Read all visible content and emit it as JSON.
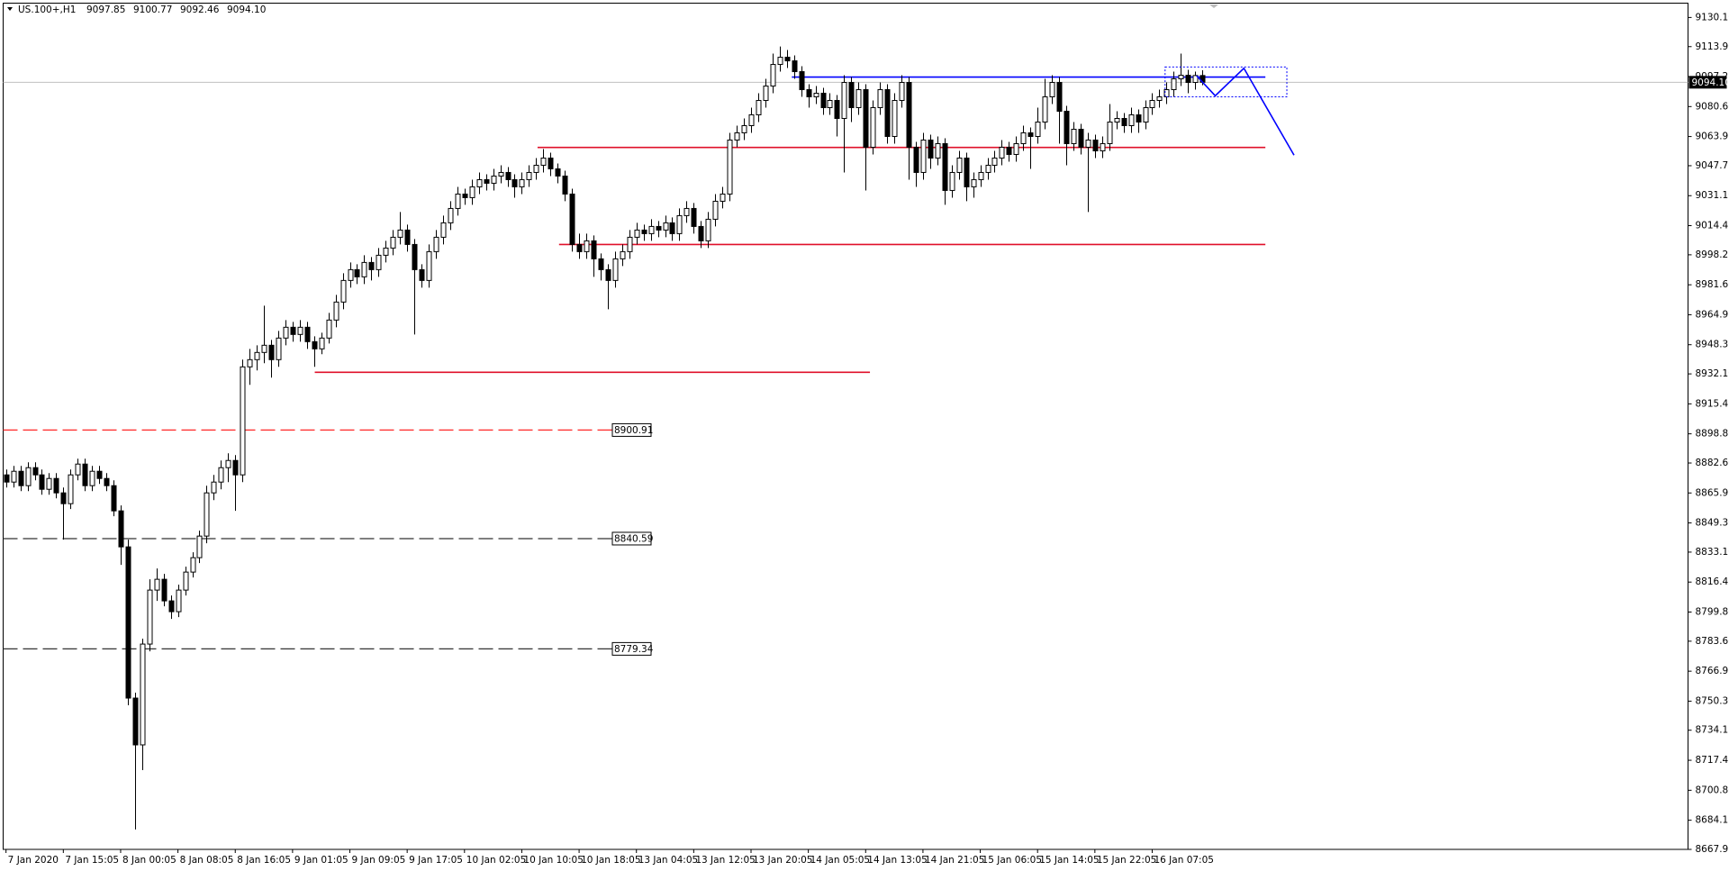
{
  "chart_data": {
    "type": "candlestick",
    "symbol": "US.100+,H1",
    "last_price_labels": [
      "9097.85",
      "9100.77",
      "9092.46",
      "9094.10"
    ],
    "up_color": "#ffffff",
    "down_color": "#000000",
    "edge_color": "#000000",
    "xlim": [
      -0.4,
      234.8
    ],
    "ylim": [
      8667.95,
      9138.05
    ],
    "xticks": [
      {
        "value": 0,
        "label": "7 Jan 2020"
      },
      {
        "value": 8,
        "label": "7 Jan 15:05"
      },
      {
        "value": 16,
        "label": "8 Jan 00:05"
      },
      {
        "value": 24,
        "label": "8 Jan 08:05"
      },
      {
        "value": 32,
        "label": "8 Jan 16:05"
      },
      {
        "value": 40,
        "label": "9 Jan 01:05"
      },
      {
        "value": 48,
        "label": "9 Jan 09:05"
      },
      {
        "value": 56,
        "label": "9 Jan 17:05"
      },
      {
        "value": 64,
        "label": "10 Jan 02:05"
      },
      {
        "value": 72,
        "label": "10 Jan 10:05"
      },
      {
        "value": 80,
        "label": "10 Jan 18:05"
      },
      {
        "value": 88,
        "label": "13 Jan 04:05"
      },
      {
        "value": 96,
        "label": "13 Jan 12:05"
      },
      {
        "value": 104,
        "label": "13 Jan 20:05"
      },
      {
        "value": 112,
        "label": "14 Jan 05:05"
      },
      {
        "value": 120,
        "label": "14 Jan 13:05"
      },
      {
        "value": 128,
        "label": "14 Jan 21:05"
      },
      {
        "value": 136,
        "label": "15 Jan 06:05"
      },
      {
        "value": 144,
        "label": "15 Jan 14:05"
      },
      {
        "value": 152,
        "label": "15 Jan 22:05"
      },
      {
        "value": 160,
        "label": "16 Jan 07:05"
      }
    ],
    "yticks": [
      {
        "value": 9130.1,
        "label": "9130.10"
      },
      {
        "value": 9113.9,
        "label": "9113.90"
      },
      {
        "value": 9097.25,
        "label": "9097.25"
      },
      {
        "value": 9080.6,
        "label": "9080.60"
      },
      {
        "value": 9063.95,
        "label": "9063.95"
      },
      {
        "value": 9047.75,
        "label": "9047.75"
      },
      {
        "value": 9031.1,
        "label": "9031.10"
      },
      {
        "value": 9014.45,
        "label": "9014.45"
      },
      {
        "value": 8998.25,
        "label": "8998.25"
      },
      {
        "value": 8981.6,
        "label": "8981.60"
      },
      {
        "value": 8964.95,
        "label": "8964.95"
      },
      {
        "value": 8948.3,
        "label": "8948.30"
      },
      {
        "value": 8932.1,
        "label": "8932.10"
      },
      {
        "value": 8915.45,
        "label": "8915.45"
      },
      {
        "value": 8898.8,
        "label": "8898.80"
      },
      {
        "value": 8882.6,
        "label": "8882.60"
      },
      {
        "value": 8865.95,
        "label": "8865.95"
      },
      {
        "value": 8849.3,
        "label": "8849.30"
      },
      {
        "value": 8833.1,
        "label": "8833.10"
      },
      {
        "value": 8816.45,
        "label": "8816.45"
      },
      {
        "value": 8799.8,
        "label": "8799.80"
      },
      {
        "value": 8783.6,
        "label": "8783.60"
      },
      {
        "value": 8766.95,
        "label": "8766.95"
      },
      {
        "value": 8750.3,
        "label": "8750.30"
      },
      {
        "value": 8734.15,
        "label": "8734.15"
      },
      {
        "value": 8717.45,
        "label": "8717.45"
      },
      {
        "value": 8700.8,
        "label": "8700.80"
      },
      {
        "value": 8684.15,
        "label": "8684.15"
      },
      {
        "value": 8667.95,
        "label": "8667.95"
      }
    ],
    "levels": [
      {
        "value": 8900.91,
        "label": "8900.91",
        "color": "#ff3030"
      },
      {
        "value": 8840.59,
        "label": "8840.59",
        "color": "#333333"
      },
      {
        "value": 8779.34,
        "label": "8779.34",
        "color": "#333333"
      }
    ],
    "segments": [
      {
        "value": 9057.9,
        "x": [
          74.2,
          175.8
        ],
        "color": "#e0102a"
      },
      {
        "value": 9004.0,
        "x": [
          77.2,
          175.8
        ],
        "color": "#e0102a"
      },
      {
        "value": 8933.0,
        "x": [
          43.1,
          120.6
        ],
        "color": "#e0102a"
      },
      {
        "value": 9097.0,
        "x": [
          109.7,
          175.8
        ],
        "color": "#0000ff"
      }
    ],
    "trend_lines": [
      {
        "x": [
          166.2,
          168.8,
          172.8,
          179.8
        ],
        "y": [
          9097.7,
          9086.6,
          9101.9,
          9053.6
        ],
        "color": "#0000ff"
      }
    ],
    "boxes": [
      {
        "x": [
          161.8,
          178.8
        ],
        "y": [
          9086.0,
          9102.6
        ],
        "color": "#0000ff"
      }
    ],
    "ohlc": [
      [
        8876,
        8879,
        8869,
        8872
      ],
      [
        8872,
        8881,
        8869,
        8878
      ],
      [
        8878,
        8881,
        8867,
        8870
      ],
      [
        8870,
        8883,
        8867,
        8880
      ],
      [
        8880,
        8883,
        8873,
        8876
      ],
      [
        8876,
        8879,
        8865,
        8868
      ],
      [
        8868,
        8877,
        8865,
        8874
      ],
      [
        8874,
        8877,
        8863,
        8866
      ],
      [
        8866,
        8869,
        8840,
        8860
      ],
      [
        8860,
        8879,
        8857,
        8876
      ],
      [
        8876,
        8885,
        8873,
        8882
      ],
      [
        8882,
        8885,
        8867,
        8870
      ],
      [
        8870,
        8881,
        8867,
        8878
      ],
      [
        8878,
        8881,
        8871,
        8874
      ],
      [
        8874,
        8877,
        8867,
        8870
      ],
      [
        8870,
        8873,
        8853,
        8856
      ],
      [
        8856,
        8859,
        8826,
        8836
      ],
      [
        8836,
        8840,
        8748,
        8752
      ],
      [
        8752,
        8755,
        8679,
        8726
      ],
      [
        8726,
        8785,
        8712,
        8782
      ],
      [
        8782,
        8818,
        8778,
        8812
      ],
      [
        8812,
        8824,
        8806,
        8818
      ],
      [
        8818,
        8821,
        8803,
        8806
      ],
      [
        8806,
        8809,
        8796,
        8800
      ],
      [
        8800,
        8815,
        8797,
        8812
      ],
      [
        8812,
        8825,
        8809,
        8822
      ],
      [
        8822,
        8833,
        8819,
        8830
      ],
      [
        8830,
        8845,
        8827,
        8842
      ],
      [
        8842,
        8870,
        8838,
        8866
      ],
      [
        8866,
        8876,
        8862,
        8872
      ],
      [
        8872,
        8884,
        8868,
        8880
      ],
      [
        8880,
        8888,
        8872,
        8884
      ],
      [
        8884,
        8887,
        8856,
        8876
      ],
      [
        8876,
        8940,
        8872,
        8936
      ],
      [
        8936,
        8946,
        8926,
        8940
      ],
      [
        8940,
        8948,
        8934,
        8944
      ],
      [
        8944,
        8970,
        8938,
        8948
      ],
      [
        8948,
        8951,
        8930,
        8940
      ],
      [
        8940,
        8956,
        8936,
        8952
      ],
      [
        8952,
        8962,
        8948,
        8958
      ],
      [
        8958,
        8961,
        8950,
        8954
      ],
      [
        8954,
        8962,
        8950,
        8958
      ],
      [
        8958,
        8961,
        8946,
        8950
      ],
      [
        8950,
        8953,
        8936,
        8946
      ],
      [
        8946,
        8955,
        8943,
        8952
      ],
      [
        8952,
        8966,
        8949,
        8962
      ],
      [
        8962,
        8976,
        8958,
        8972
      ],
      [
        8972,
        8988,
        8968,
        8984
      ],
      [
        8984,
        8994,
        8980,
        8990
      ],
      [
        8990,
        8993,
        8982,
        8986
      ],
      [
        8986,
        8998,
        8982,
        8994
      ],
      [
        8994,
        8997,
        8984,
        8990
      ],
      [
        8990,
        9002,
        8986,
        8998
      ],
      [
        8998,
        9006,
        8994,
        9002
      ],
      [
        9002,
        9012,
        8998,
        9008
      ],
      [
        9008,
        9022,
        9004,
        9012
      ],
      [
        9012,
        9015,
        9000,
        9004
      ],
      [
        9004,
        9007,
        8954,
        8990
      ],
      [
        8990,
        8993,
        8980,
        8984
      ],
      [
        8984,
        9004,
        8980,
        9000
      ],
      [
        9000,
        9012,
        8996,
        9008
      ],
      [
        9008,
        9020,
        9004,
        9016
      ],
      [
        9016,
        9028,
        9012,
        9024
      ],
      [
        9024,
        9036,
        9020,
        9032
      ],
      [
        9032,
        9035,
        9026,
        9030
      ],
      [
        9030,
        9040,
        9026,
        9036
      ],
      [
        9036,
        9044,
        9032,
        9040
      ],
      [
        9040,
        9043,
        9034,
        9038
      ],
      [
        9038,
        9046,
        9034,
        9042
      ],
      [
        9042,
        9048,
        9038,
        9044
      ],
      [
        9044,
        9047,
        9036,
        9040
      ],
      [
        9040,
        9043,
        9030,
        9036
      ],
      [
        9036,
        9044,
        9032,
        9040
      ],
      [
        9040,
        9048,
        9036,
        9044
      ],
      [
        9044,
        9052,
        9040,
        9048
      ],
      [
        9048,
        9057,
        9044,
        9052
      ],
      [
        9052,
        9055,
        9042,
        9046
      ],
      [
        9046,
        9049,
        9038,
        9042
      ],
      [
        9042,
        9045,
        9028,
        9032
      ],
      [
        9032,
        9035,
        9000,
        9004
      ],
      [
        9004,
        9010,
        8996,
        9000
      ],
      [
        9000,
        9010,
        8996,
        9006
      ],
      [
        9006,
        9009,
        8986,
        8996
      ],
      [
        8996,
        8999,
        8984,
        8990
      ],
      [
        8990,
        8993,
        8968,
        8984
      ],
      [
        8984,
        9000,
        8980,
        8996
      ],
      [
        8996,
        9004,
        8992,
        9000
      ],
      [
        9000,
        9012,
        8996,
        9008
      ],
      [
        9008,
        9016,
        9004,
        9012
      ],
      [
        9012,
        9015,
        9006,
        9010
      ],
      [
        9010,
        9018,
        9006,
        9014
      ],
      [
        9014,
        9017,
        9008,
        9012
      ],
      [
        9012,
        9020,
        9008,
        9016
      ],
      [
        9016,
        9019,
        9006,
        9010
      ],
      [
        9010,
        9024,
        9006,
        9020
      ],
      [
        9020,
        9028,
        9016,
        9024
      ],
      [
        9024,
        9027,
        9010,
        9014
      ],
      [
        9014,
        9017,
        9002,
        9006
      ],
      [
        9006,
        9022,
        9002,
        9018
      ],
      [
        9018,
        9032,
        9014,
        9028
      ],
      [
        9028,
        9036,
        9024,
        9032
      ],
      [
        9032,
        9066,
        9028,
        9062
      ],
      [
        9062,
        9070,
        9058,
        9066
      ],
      [
        9066,
        9074,
        9062,
        9070
      ],
      [
        9070,
        9080,
        9066,
        9076
      ],
      [
        9076,
        9088,
        9072,
        9084
      ],
      [
        9084,
        9096,
        9080,
        9092
      ],
      [
        9092,
        9110,
        9088,
        9104
      ],
      [
        9104,
        9114,
        9100,
        9108
      ],
      [
        9108,
        9112,
        9102,
        9106
      ],
      [
        9106,
        9109,
        9096,
        9100
      ],
      [
        9100,
        9103,
        9086,
        9090
      ],
      [
        9090,
        9093,
        9080,
        9086
      ],
      [
        9086,
        9092,
        9082,
        9088
      ],
      [
        9088,
        9091,
        9076,
        9080
      ],
      [
        9080,
        9088,
        9076,
        9084
      ],
      [
        9084,
        9087,
        9064,
        9074
      ],
      [
        9074,
        9098,
        9044,
        9094
      ],
      [
        9094,
        9097,
        9072,
        9080
      ],
      [
        9080,
        9094,
        9076,
        9090
      ],
      [
        9090,
        9093,
        9034,
        9058
      ],
      [
        9058,
        9084,
        9054,
        9080
      ],
      [
        9080,
        9094,
        9076,
        9090
      ],
      [
        9090,
        9093,
        9060,
        9064
      ],
      [
        9064,
        9088,
        9060,
        9084
      ],
      [
        9084,
        9098,
        9080,
        9094
      ],
      [
        9094,
        9097,
        9040,
        9058
      ],
      [
        9058,
        9061,
        9036,
        9044
      ],
      [
        9044,
        9066,
        9040,
        9062
      ],
      [
        9062,
        9065,
        9046,
        9052
      ],
      [
        9052,
        9064,
        9048,
        9060
      ],
      [
        9060,
        9063,
        9026,
        9034
      ],
      [
        9034,
        9048,
        9030,
        9044
      ],
      [
        9044,
        9056,
        9040,
        9052
      ],
      [
        9052,
        9055,
        9028,
        9036
      ],
      [
        9036,
        9044,
        9030,
        9040
      ],
      [
        9040,
        9048,
        9036,
        9044
      ],
      [
        9044,
        9052,
        9040,
        9048
      ],
      [
        9048,
        9056,
        9044,
        9052
      ],
      [
        9052,
        9062,
        9048,
        9058
      ],
      [
        9058,
        9061,
        9050,
        9054
      ],
      [
        9054,
        9064,
        9050,
        9060
      ],
      [
        9060,
        9070,
        9056,
        9066
      ],
      [
        9066,
        9069,
        9046,
        9064
      ],
      [
        9064,
        9080,
        9060,
        9072
      ],
      [
        9072,
        9096,
        9068,
        9086
      ],
      [
        9086,
        9098,
        9082,
        9094
      ],
      [
        9094,
        9097,
        9060,
        9078
      ],
      [
        9078,
        9081,
        9048,
        9060
      ],
      [
        9060,
        9072,
        9056,
        9068
      ],
      [
        9068,
        9071,
        9054,
        9058
      ],
      [
        9058,
        9066,
        9022,
        9062
      ],
      [
        9062,
        9065,
        9052,
        9056
      ],
      [
        9056,
        9064,
        9052,
        9060
      ],
      [
        9060,
        9082,
        9056,
        9072
      ],
      [
        9072,
        9078,
        9068,
        9074
      ],
      [
        9074,
        9077,
        9066,
        9070
      ],
      [
        9070,
        9080,
        9066,
        9076
      ],
      [
        9076,
        9079,
        9066,
        9072
      ],
      [
        9072,
        9084,
        9068,
        9080
      ],
      [
        9080,
        9088,
        9076,
        9084
      ],
      [
        9084,
        9090,
        9080,
        9086
      ],
      [
        9086,
        9094,
        9082,
        9090
      ],
      [
        9090,
        9100,
        9086,
        9096
      ],
      [
        9096,
        9110,
        9092,
        9098
      ],
      [
        9098,
        9101,
        9088,
        9094
      ],
      [
        9094,
        9100,
        9090,
        9097.85
      ],
      [
        9097.85,
        9100.77,
        9092.46,
        9094.1
      ]
    ]
  }
}
